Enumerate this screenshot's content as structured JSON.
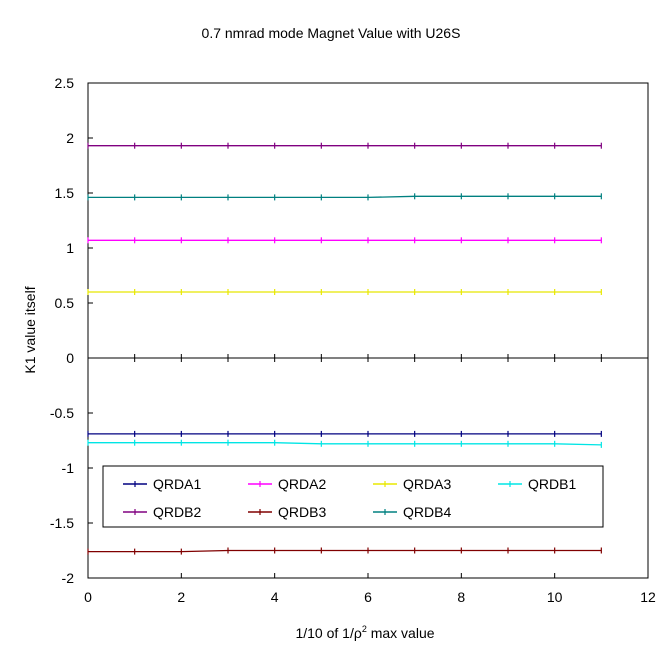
{
  "chart_data": {
    "type": "line",
    "title": "0.7 nmrad mode Magnet Value with U26S",
    "xlabel_main": "1/10 of 1/ρ",
    "xlabel_sup": "2",
    "xlabel_tail": " max value",
    "ylabel": "K1 value itself",
    "xlim": [
      0,
      12
    ],
    "ylim": [
      -2,
      2.5
    ],
    "xticks": [
      0,
      2,
      4,
      6,
      8,
      10,
      12
    ],
    "yticks": [
      2.5,
      2,
      1.5,
      1,
      0.5,
      0,
      -0.5,
      -1,
      -1.5,
      -2
    ],
    "x": [
      0,
      1,
      2,
      3,
      4,
      5,
      6,
      7,
      8,
      9,
      10,
      11
    ],
    "grid": false,
    "legend_position": "lower-center inside",
    "series": [
      {
        "name": "QRDA1",
        "color": "#000080",
        "values": [
          -0.69,
          -0.69,
          -0.69,
          -0.69,
          -0.69,
          -0.69,
          -0.69,
          -0.69,
          -0.69,
          -0.69,
          -0.69,
          -0.69
        ]
      },
      {
        "name": "QRDA2",
        "color": "#ff00ff",
        "values": [
          1.07,
          1.07,
          1.07,
          1.07,
          1.07,
          1.07,
          1.07,
          1.07,
          1.07,
          1.07,
          1.07,
          1.07
        ]
      },
      {
        "name": "QRDA3",
        "color": "#e8e800",
        "values": [
          0.6,
          0.6,
          0.6,
          0.6,
          0.6,
          0.6,
          0.6,
          0.6,
          0.6,
          0.6,
          0.6,
          0.6
        ]
      },
      {
        "name": "QRDB1",
        "color": "#00e5e5",
        "values": [
          -0.77,
          -0.77,
          -0.77,
          -0.77,
          -0.77,
          -0.78,
          -0.78,
          -0.78,
          -0.78,
          -0.78,
          -0.78,
          -0.79
        ]
      },
      {
        "name": "QRDB2",
        "color": "#800080",
        "values": [
          1.93,
          1.93,
          1.93,
          1.93,
          1.93,
          1.93,
          1.93,
          1.93,
          1.93,
          1.93,
          1.93,
          1.93
        ]
      },
      {
        "name": "QRDB3",
        "color": "#800000",
        "values": [
          -1.76,
          -1.76,
          -1.76,
          -1.75,
          -1.75,
          -1.75,
          -1.75,
          -1.75,
          -1.75,
          -1.75,
          -1.75,
          -1.75
        ]
      },
      {
        "name": "QRDB4",
        "color": "#008080",
        "values": [
          1.46,
          1.46,
          1.46,
          1.46,
          1.46,
          1.46,
          1.46,
          1.47,
          1.47,
          1.47,
          1.47,
          1.47
        ]
      }
    ]
  }
}
